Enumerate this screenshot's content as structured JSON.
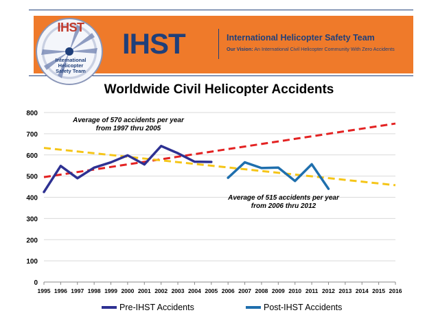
{
  "header": {
    "logo_word": "IHST",
    "logo_text": "International\nHelicopter\nSafety Team",
    "brand": "IHST",
    "org_name": "International Helicopter Safety Team",
    "vision_label": "Our Vision:",
    "vision_text": "An International Civil Helicopter Community With Zero Accidents",
    "banner_color": "#ef7a2a",
    "brand_color": "#1f3f7a"
  },
  "chart_data": {
    "type": "line",
    "title": "Worldwide Civil Helicopter Accidents",
    "xlabel": "",
    "ylabel": "",
    "xlim": [
      1995,
      2016
    ],
    "ylim": [
      0,
      800
    ],
    "x_ticks": [
      "1995",
      "1996",
      "1997",
      "1998",
      "1999",
      "2000",
      "2001",
      "2002",
      "2003",
      "2004",
      "2005",
      "2006",
      "2007",
      "2008",
      "2009",
      "2010",
      "2011",
      "2012",
      "2013",
      "2014",
      "2015",
      "2016"
    ],
    "y_ticks": [
      "0",
      "100",
      "200",
      "300",
      "400",
      "500",
      "600",
      "700",
      "800"
    ],
    "grid": "horizontal",
    "legend_position": "bottom",
    "series": [
      {
        "name": "Pre-IHST Accidents",
        "color": "#2e3192",
        "x": [
          1995,
          1996,
          1997,
          1998,
          1999,
          2000,
          2001,
          2002,
          2003,
          2004,
          2005
        ],
        "y": [
          425,
          548,
          490,
          540,
          565,
          598,
          555,
          642,
          608,
          568,
          567
        ]
      },
      {
        "name": "Post-IHST Accidents",
        "color": "#1f6fad",
        "x": [
          2006,
          2007,
          2008,
          2009,
          2010,
          2011,
          2012
        ],
        "y": [
          492,
          565,
          538,
          540,
          477,
          556,
          440
        ]
      }
    ],
    "trendlines": [
      {
        "color": "#e32222",
        "style": "dashed",
        "x": [
          1995,
          2016
        ],
        "y": [
          495,
          748
        ]
      },
      {
        "color": "#f5c518",
        "style": "dashed",
        "x": [
          1995,
          2016
        ],
        "y": [
          633,
          457
        ]
      }
    ],
    "annotations": [
      {
        "text": "Average of 570 accidents per year\nfrom 1997 thru 2005"
      },
      {
        "text": "Average of 515 accidents per year\nfrom 2006 thru 2012"
      }
    ]
  }
}
